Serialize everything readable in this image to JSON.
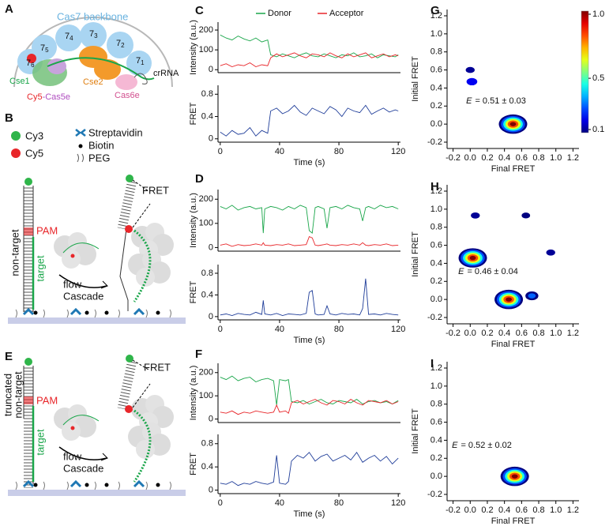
{
  "panel_labels": [
    "A",
    "B",
    "C",
    "D",
    "E",
    "F",
    "G",
    "H",
    "I"
  ],
  "schematic_a": {
    "backbone": "Cas7 backbone",
    "subunits": [
      {
        "main": "7",
        "sub": "6"
      },
      {
        "main": "7",
        "sub": "5"
      },
      {
        "main": "7",
        "sub": "4"
      },
      {
        "main": "7",
        "sub": "3"
      },
      {
        "main": "7",
        "sub": "2"
      },
      {
        "main": "7",
        "sub": "1"
      }
    ],
    "cse1": "Cse1",
    "cse2": "Cse2",
    "crrna": "crRNA",
    "cy5": "Cy5",
    "cas5e": "-Cas5e",
    "cas6e": "Cas6e"
  },
  "legend_b": {
    "cy3": "Cy3",
    "cy5": "Cy5",
    "streptavidin": "Streptavidin",
    "biotin": "Biotin",
    "peg": "PEG"
  },
  "schematic_b": {
    "pam": "PAM",
    "strand": [
      "non-target"
    ],
    "target": "target",
    "flow": "flow",
    "protein": "Cascade",
    "fret": "FRET"
  },
  "schematic_e": {
    "pam": "PAM",
    "strand": [
      "truncated",
      "non-target"
    ],
    "target": "target",
    "flow": "flow",
    "protein": "Cascade",
    "fret": "FRET"
  },
  "chart_data": [
    {
      "type": "line",
      "ylabel": "Intensity (a.u.)",
      "xlim": [
        -1.5,
        121.5
      ],
      "ylim": [
        -15,
        240
      ],
      "yticks": [
        0,
        100,
        200
      ],
      "x": [
        0,
        4,
        8,
        12,
        16,
        20,
        24,
        28,
        32,
        34,
        38,
        42,
        46,
        50,
        54,
        58,
        62,
        66,
        70,
        74,
        78,
        82,
        86,
        90,
        94,
        98,
        102,
        106,
        110,
        114,
        118,
        120
      ],
      "series": [
        {
          "name": "Donor",
          "color": "#1aa64a",
          "values": [
            175,
            160,
            150,
            170,
            155,
            145,
            160,
            140,
            150,
            75,
            65,
            80,
            70,
            60,
            75,
            85,
            70,
            65,
            80,
            70,
            60,
            75,
            70,
            85,
            65,
            70,
            80,
            60,
            75,
            70,
            65,
            75
          ]
        },
        {
          "name": "Acceptor",
          "color": "#e8262a",
          "values": [
            20,
            30,
            15,
            25,
            20,
            35,
            15,
            25,
            20,
            60,
            80,
            65,
            75,
            85,
            70,
            60,
            80,
            75,
            65,
            85,
            70,
            60,
            80,
            65,
            75,
            85,
            60,
            70,
            80,
            65,
            75,
            70
          ]
        }
      ]
    },
    {
      "type": "line",
      "ylabel": "FRET",
      "xlabel": "Time (s)",
      "xlim": [
        -1.5,
        121.5
      ],
      "ylim": [
        -0.06,
        0.96
      ],
      "yticks": [
        0,
        0.4,
        0.8
      ],
      "xticks": [
        0,
        40,
        80,
        120
      ],
      "x": [
        0,
        4,
        8,
        12,
        16,
        20,
        24,
        28,
        32,
        34,
        38,
        42,
        46,
        50,
        54,
        58,
        62,
        66,
        70,
        74,
        78,
        82,
        86,
        90,
        94,
        98,
        102,
        106,
        110,
        114,
        118,
        120
      ],
      "series": [
        {
          "color": "#1f3d99",
          "values": [
            0.12,
            0.05,
            0.15,
            0.08,
            0.1,
            0.2,
            0.05,
            0.15,
            0.1,
            0.5,
            0.55,
            0.45,
            0.5,
            0.6,
            0.48,
            0.42,
            0.55,
            0.5,
            0.45,
            0.58,
            0.52,
            0.4,
            0.55,
            0.5,
            0.47,
            0.6,
            0.44,
            0.5,
            0.55,
            0.48,
            0.52,
            0.5
          ]
        }
      ]
    },
    {
      "type": "line",
      "ylabel": "Intensity (a.u.)",
      "xlim": [
        -1.5,
        121.5
      ],
      "ylim": [
        -15,
        240
      ],
      "yticks": [
        0,
        100,
        200
      ],
      "x": [
        0,
        4,
        8,
        12,
        16,
        20,
        24,
        28,
        29,
        30,
        34,
        38,
        42,
        46,
        50,
        54,
        58,
        60,
        62,
        64,
        66,
        70,
        72,
        74,
        78,
        82,
        86,
        90,
        94,
        96,
        98,
        100,
        104,
        108,
        112,
        116,
        120
      ],
      "series": [
        {
          "color": "#1aa64a",
          "values": [
            170,
            160,
            175,
            155,
            165,
            170,
            160,
            165,
            60,
            160,
            170,
            165,
            155,
            170,
            160,
            175,
            165,
            70,
            60,
            165,
            170,
            160,
            80,
            165,
            170,
            160,
            175,
            165,
            160,
            110,
            165,
            170,
            160,
            175,
            165,
            170,
            160
          ]
        },
        {
          "color": "#e8262a",
          "values": [
            10,
            15,
            5,
            12,
            8,
            10,
            15,
            10,
            20,
            10,
            8,
            12,
            10,
            15,
            8,
            10,
            12,
            45,
            40,
            10,
            8,
            12,
            15,
            10,
            8,
            12,
            10,
            15,
            10,
            20,
            10,
            8,
            12,
            10,
            15,
            8,
            10
          ]
        }
      ]
    },
    {
      "type": "line",
      "ylabel": "FRET",
      "xlabel": "Time (s)",
      "xlim": [
        -1.5,
        121.5
      ],
      "ylim": [
        -0.06,
        0.96
      ],
      "yticks": [
        0,
        0.4,
        0.8
      ],
      "xticks": [
        0,
        40,
        80,
        120
      ],
      "x": [
        0,
        4,
        8,
        12,
        16,
        20,
        24,
        28,
        29,
        30,
        34,
        38,
        42,
        46,
        50,
        54,
        58,
        60,
        62,
        64,
        66,
        70,
        72,
        74,
        78,
        82,
        86,
        90,
        94,
        96,
        98,
        100,
        104,
        108,
        112,
        116,
        120
      ],
      "series": [
        {
          "color": "#1f3d99",
          "values": [
            0.03,
            0.05,
            0.02,
            0.06,
            0.04,
            0.03,
            0.08,
            0.04,
            0.3,
            0.05,
            0.03,
            0.06,
            0.02,
            0.05,
            0.04,
            0.03,
            0.06,
            0.45,
            0.48,
            0.05,
            0.03,
            0.04,
            0.2,
            0.05,
            0.03,
            0.06,
            0.04,
            0.05,
            0.03,
            0.15,
            0.7,
            0.04,
            0.05,
            0.03,
            0.06,
            0.04,
            0.03
          ]
        }
      ]
    },
    {
      "type": "line",
      "ylabel": "Intensity (a.u.)",
      "xlim": [
        -1.5,
        121.5
      ],
      "ylim": [
        -15,
        240
      ],
      "yticks": [
        0,
        100,
        200
      ],
      "x": [
        0,
        4,
        8,
        12,
        16,
        20,
        24,
        28,
        32,
        36,
        38,
        40,
        44,
        46,
        48,
        52,
        56,
        60,
        64,
        68,
        72,
        76,
        80,
        84,
        88,
        92,
        96,
        100,
        104,
        108,
        112,
        116,
        120
      ],
      "series": [
        {
          "color": "#1aa64a",
          "values": [
            180,
            170,
            185,
            165,
            175,
            180,
            160,
            170,
            175,
            165,
            60,
            170,
            165,
            170,
            75,
            70,
            80,
            65,
            75,
            85,
            70,
            65,
            80,
            75,
            70,
            85,
            65,
            75,
            80,
            70,
            75,
            65,
            80
          ]
        },
        {
          "color": "#e8262a",
          "values": [
            30,
            25,
            35,
            20,
            30,
            25,
            35,
            30,
            25,
            30,
            60,
            30,
            35,
            25,
            70,
            80,
            65,
            75,
            85,
            70,
            60,
            80,
            75,
            65,
            85,
            70,
            60,
            80,
            75,
            70,
            80,
            65,
            75
          ]
        }
      ]
    },
    {
      "type": "line",
      "ylabel": "FRET",
      "xlabel": "Time (s)",
      "xlim": [
        -1.5,
        121.5
      ],
      "ylim": [
        -0.06,
        0.96
      ],
      "yticks": [
        0,
        0.4,
        0.8
      ],
      "xticks": [
        0,
        40,
        80,
        120
      ],
      "x": [
        0,
        4,
        8,
        12,
        16,
        20,
        24,
        28,
        32,
        36,
        38,
        40,
        44,
        46,
        48,
        52,
        56,
        60,
        64,
        68,
        72,
        76,
        80,
        84,
        88,
        92,
        96,
        100,
        104,
        108,
        112,
        116,
        120
      ],
      "series": [
        {
          "color": "#1f3d99",
          "values": [
            0.12,
            0.1,
            0.15,
            0.08,
            0.12,
            0.1,
            0.15,
            0.12,
            0.1,
            0.14,
            0.6,
            0.12,
            0.1,
            0.15,
            0.5,
            0.6,
            0.55,
            0.65,
            0.5,
            0.58,
            0.62,
            0.5,
            0.55,
            0.6,
            0.52,
            0.65,
            0.48,
            0.55,
            0.6,
            0.5,
            0.58,
            0.45,
            0.55
          ]
        }
      ]
    },
    {
      "type": "contour",
      "xlabel": "Final FRET",
      "ylabel": "Initial FRET",
      "xlim": [
        -0.27,
        1.27
      ],
      "ylim": [
        -0.27,
        1.27
      ],
      "xticks": [
        -0.2,
        {
          "value": 0.0,
          "label": "0.0"
        },
        0.2,
        0.4,
        0.6,
        0.8,
        {
          "value": 1.0,
          "label": "1.0"
        },
        1.2
      ],
      "yticks": [
        -0.2,
        {
          "value": 0.0,
          "label": "0.0"
        },
        0.2,
        0.4,
        0.6,
        0.8,
        {
          "value": 1.0,
          "label": "1.0"
        },
        1.2
      ],
      "colormap": "jet",
      "colorbar": {
        "clim": [
          0.1,
          1.0
        ],
        "ticks": [
          0.1,
          0.5,
          {
            "value": 1.0,
            "label": "1.0"
          }
        ]
      },
      "annotation": {
        "symbol": "E",
        "text": "= 0.51 ± 0.03"
      },
      "x": [
        0.0,
        0.02,
        0.5
      ],
      "y": [
        0.6,
        0.47,
        0.0
      ],
      "values": [
        0.12,
        0.2,
        1.0
      ]
    },
    {
      "type": "contour",
      "xlabel": "Final FRET",
      "ylabel": "Initial FRET",
      "xlim": [
        -0.27,
        1.27
      ],
      "ylim": [
        -0.27,
        1.27
      ],
      "xticks": [
        -0.2,
        {
          "value": 0.0,
          "label": "0.0"
        },
        0.2,
        0.4,
        0.6,
        0.8,
        {
          "value": 1.0,
          "label": "1.0"
        },
        1.2
      ],
      "yticks": [
        -0.2,
        {
          "value": 0.0,
          "label": "0.0"
        },
        0.2,
        0.4,
        0.6,
        0.8,
        {
          "value": 1.0,
          "label": "1.0"
        },
        1.2
      ],
      "colormap": "jet",
      "annotation": {
        "symbol": "E",
        "text": "= 0.46 ± 0.04"
      },
      "x": [
        0.03,
        0.45,
        0.72,
        0.94,
        0.06,
        0.65
      ],
      "y": [
        0.46,
        0.0,
        0.04,
        0.52,
        0.93,
        0.93
      ],
      "values": [
        1.0,
        1.0,
        0.3,
        0.12,
        0.12,
        0.1
      ]
    },
    {
      "type": "contour",
      "xlabel": "Final FRET",
      "ylabel": "Initial FRET",
      "xlim": [
        -0.27,
        1.27
      ],
      "ylim": [
        -0.27,
        1.27
      ],
      "xticks": [
        -0.2,
        {
          "value": 0.0,
          "label": "0.0"
        },
        0.2,
        0.4,
        0.6,
        0.8,
        {
          "value": 1.0,
          "label": "1.0"
        },
        1.2
      ],
      "yticks": [
        -0.2,
        {
          "value": 0.0,
          "label": "0.0"
        },
        0.2,
        0.4,
        0.6,
        0.8,
        {
          "value": 1.0,
          "label": "1.0"
        },
        1.2
      ],
      "colormap": "jet",
      "annotation": {
        "symbol": "E",
        "text": "= 0.52 ± 0.02"
      },
      "x": [
        0.52
      ],
      "y": [
        0.0
      ],
      "values": [
        1.0
      ]
    }
  ]
}
